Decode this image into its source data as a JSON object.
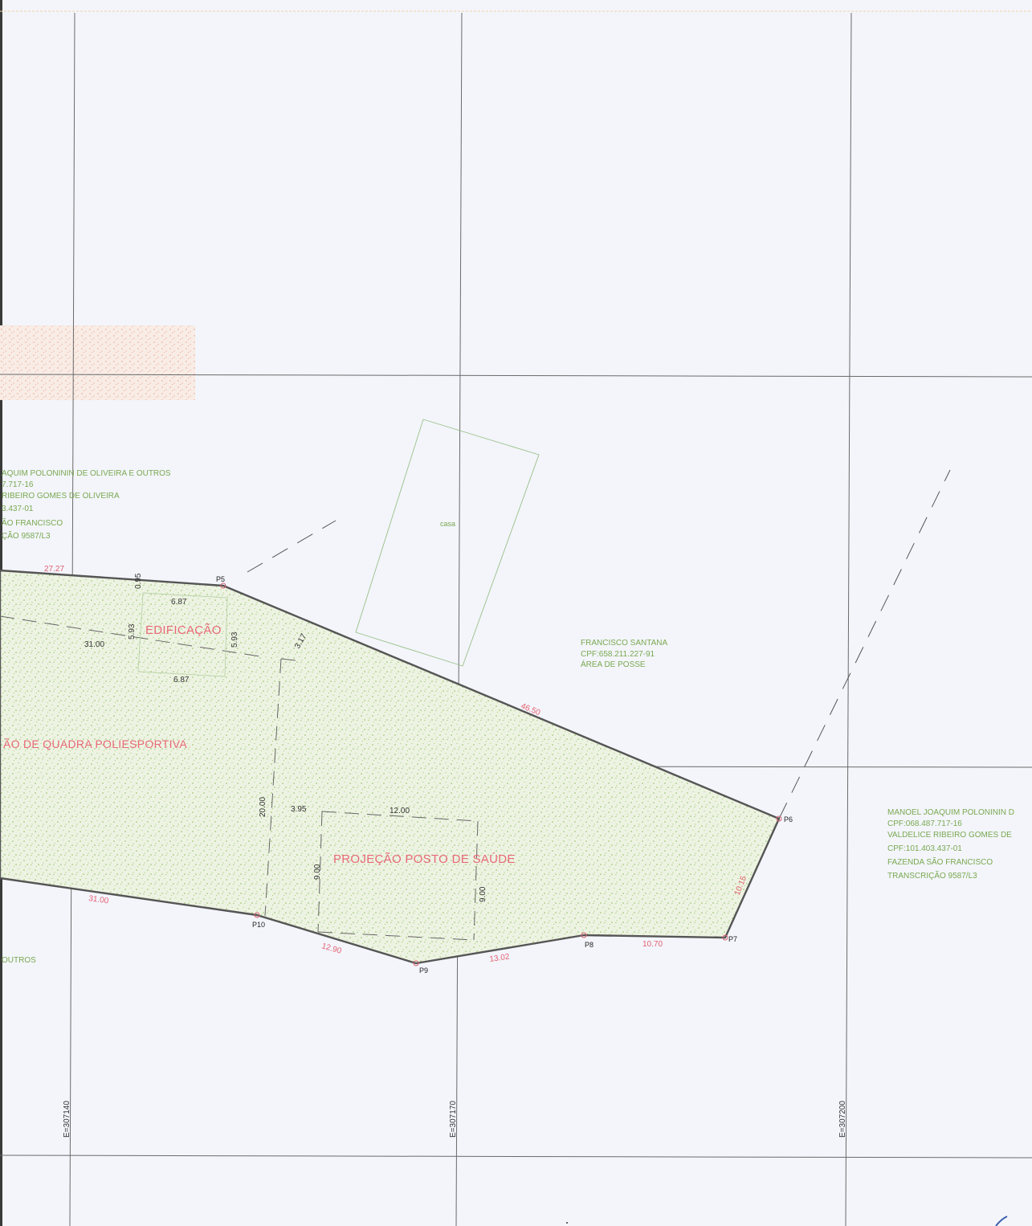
{
  "areas": {
    "edificacao": "EDIFICAÇÃO",
    "quadra": "ÃO DE QUADRA POLIESPORTIVA",
    "posto": "PROJEÇÃO POSTO DE SAÚDE",
    "casa": "casa"
  },
  "owners": {
    "left": [
      "AQUIM POLONININ DE OLIVEIRA E OUTROS",
      "7.717-16",
      "RIBEIRO GOMES DE OLIVEIRA",
      "3.437-01",
      "ÃO FRANCISCO",
      "ÇÃO 9587/L3"
    ],
    "francisco": [
      "FRANCISCO SANTANA",
      "CPF:658.211.227-91",
      "ÁREA DE POSSE"
    ],
    "manoel": [
      "MANOEL JOAQUIM POLONININ D",
      "CPF:068.487.717-16",
      "VALDELICE RIBEIRO GOMES DE",
      "CPF:101.403.437-01",
      "FAZENDA SÃO FRANCISCO",
      "TRANSCRIÇÃO 9587/L3"
    ],
    "outros": "OUTROS"
  },
  "points": {
    "p5": "P5",
    "p6": "P6",
    "p7": "P7",
    "p8": "P8",
    "p9": "P9",
    "p10": "P10"
  },
  "boundary_dims": {
    "d2727": "27.27",
    "d4650": "46.50",
    "d1015": "10.15",
    "d1070": "10.70",
    "d1302": "13.02",
    "d1290": "12.90",
    "d3100": "31.00"
  },
  "inner_dims": {
    "d095": "0.95",
    "d687a": "6.87",
    "d593a": "5.93",
    "d593b": "5.93",
    "d3100": "31.00",
    "d687b": "6.87",
    "d317": "3.17",
    "d2000": "20.00",
    "d395": "3.95",
    "d1200": "12.00",
    "d900a": "9.00",
    "d900b": "9.00"
  },
  "coords": {
    "e307140": "E=307140",
    "e307170": "E=307170",
    "e307200": "E=307200"
  }
}
